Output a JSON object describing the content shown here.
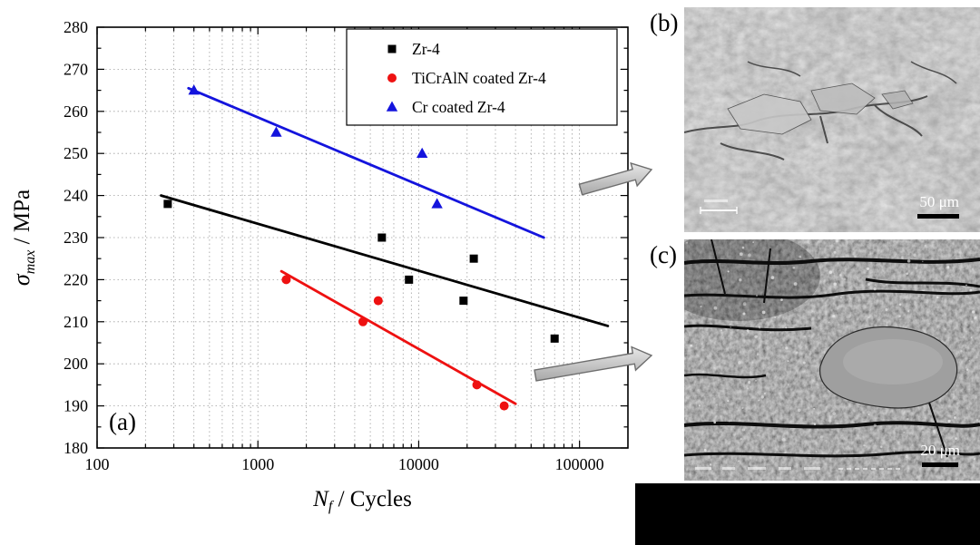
{
  "figure": {
    "background": "#ffffff",
    "panel_labels": {
      "a": "(a)",
      "b": "(b)",
      "c": "(c)"
    }
  },
  "chart_data": {
    "type": "scatter",
    "x_scale": "log",
    "xlabel": {
      "var": "N",
      "sub": "f",
      "rest": " / Cycles"
    },
    "ylabel": {
      "var": "σ",
      "sub": "max",
      "rest": " / MPa"
    },
    "xlim": [
      100,
      200000
    ],
    "ylim": [
      180,
      280
    ],
    "x_ticks": [
      100,
      1000,
      10000,
      100000
    ],
    "x_tick_labels": [
      "100",
      "1000",
      "10000",
      "100000"
    ],
    "y_tick_start": 180,
    "y_tick_end": 280,
    "y_tick_step": 10,
    "grid": true,
    "legend_position": "top-right",
    "series": [
      {
        "name": "Zr-4",
        "marker": "square",
        "color": "#000000",
        "points": [
          [
            275,
            238
          ],
          [
            5900,
            230
          ],
          [
            8700,
            220
          ],
          [
            19000,
            215
          ],
          [
            22000,
            225
          ],
          [
            70000,
            206
          ]
        ],
        "fit_line": {
          "x1": 250,
          "y1": 240,
          "x2": 150000,
          "y2": 209
        }
      },
      {
        "name": "TiCrAlN coated Zr-4",
        "marker": "circle",
        "color": "#ee1111",
        "points": [
          [
            1500,
            220
          ],
          [
            4500,
            210
          ],
          [
            5600,
            215
          ],
          [
            23000,
            195
          ],
          [
            34000,
            190
          ]
        ],
        "fit_line": {
          "x1": 1400,
          "y1": 222,
          "x2": 40000,
          "y2": 190.5
        }
      },
      {
        "name": "Cr coated Zr-4",
        "marker": "triangle",
        "color": "#1414dd",
        "points": [
          [
            400,
            265
          ],
          [
            1300,
            255
          ],
          [
            10500,
            250
          ],
          [
            13000,
            238
          ]
        ],
        "fit_line": {
          "x1": 370,
          "y1": 265.5,
          "x2": 60000,
          "y2": 230
        }
      }
    ]
  },
  "micrographs": {
    "b": {
      "scale_bar": "50 μm"
    },
    "c": {
      "scale_bar": "20 μm"
    }
  }
}
